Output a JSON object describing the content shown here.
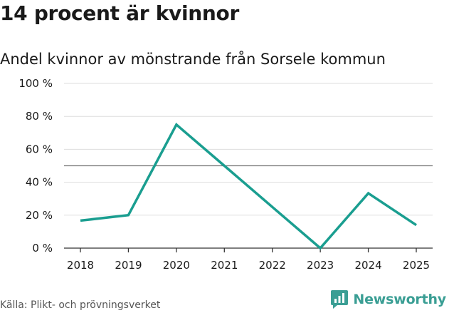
{
  "chart_data": {
    "type": "line",
    "title": "14 procent är kvinnor",
    "subtitle": "Andel kvinnor av mönstrande från Sorsele kommun",
    "categories": [
      "2018",
      "2019",
      "2020",
      "2021",
      "2022",
      "2023",
      "2024",
      "2025"
    ],
    "series": [
      {
        "name": "Andel kvinnor",
        "values": [
          16.7,
          20,
          75,
          50,
          25,
          0,
          33.3,
          14
        ]
      }
    ],
    "ylim": [
      0,
      100
    ],
    "yticks": [
      0,
      20,
      40,
      60,
      80,
      100
    ],
    "ytick_labels": [
      "0 %",
      "20 %",
      "40 %",
      "60 %",
      "80 %",
      "100 %"
    ],
    "reference_line": 50,
    "xlabel": "",
    "ylabel": "",
    "grid": true,
    "colors": {
      "line": "#1a9e90",
      "grid": "#dddddd",
      "reference": "#777777",
      "axis": "#333333"
    }
  },
  "footer": {
    "source": "Källa: Plikt- och prövningsverket",
    "brand": "Newsworthy",
    "brand_icon": "newsworthy-logo-icon",
    "brand_color": "#3a9e94"
  }
}
